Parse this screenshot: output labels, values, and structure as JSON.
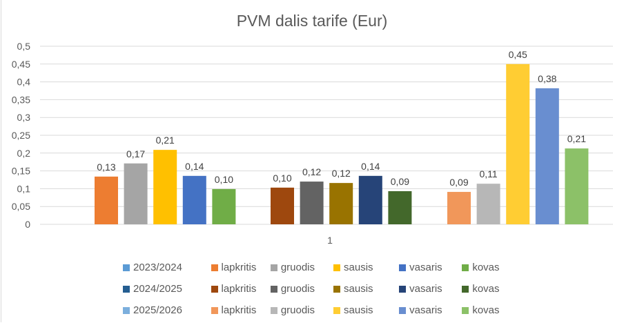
{
  "chart_data": {
    "type": "bar",
    "title": "PVM dalis tarife (Eur)",
    "xlabel": "",
    "ylabel": "",
    "categories": [
      "1"
    ],
    "ylim": [
      0,
      0.5
    ],
    "yticks": [
      "0",
      "0,05",
      "0,1",
      "0,15",
      "0,2",
      "0,25",
      "0,3",
      "0,35",
      "0,4",
      "0,45",
      "0,5"
    ],
    "ytick_values": [
      0,
      0.05,
      0.1,
      0.15,
      0.2,
      0.25,
      0.3,
      0.35,
      0.4,
      0.45,
      0.5
    ],
    "grid": true,
    "legend_position": "bottom",
    "groups": [
      {
        "name": "2023/2024",
        "marker_color": "#5B9BD5",
        "series": [
          {
            "name": "lapkritis",
            "value": 0.134,
            "label": "0,13",
            "color": "#ED7D31"
          },
          {
            "name": "gruodis",
            "value": 0.171,
            "label": "0,17",
            "color": "#A5A5A5"
          },
          {
            "name": "sausis",
            "value": 0.209,
            "label": "0,21",
            "color": "#FFC000"
          },
          {
            "name": "vasaris",
            "value": 0.136,
            "label": "0,14",
            "color": "#4472C4"
          },
          {
            "name": "kovas",
            "value": 0.099,
            "label": "0,10",
            "color": "#70AD47"
          }
        ]
      },
      {
        "name": "2024/2025",
        "marker_color": "#255E91",
        "series": [
          {
            "name": "lapkritis",
            "value": 0.103,
            "label": "0,10",
            "color": "#9E480E"
          },
          {
            "name": "gruodis",
            "value": 0.12,
            "label": "0,12",
            "color": "#636363"
          },
          {
            "name": "sausis",
            "value": 0.116,
            "label": "0,12",
            "color": "#997300"
          },
          {
            "name": "vasaris",
            "value": 0.136,
            "label": "0,14",
            "color": "#264478"
          },
          {
            "name": "kovas",
            "value": 0.093,
            "label": "0,09",
            "color": "#43682B"
          }
        ]
      },
      {
        "name": "2025/2026",
        "marker_color": "#7CAFDD",
        "series": [
          {
            "name": "lapkritis",
            "value": 0.091,
            "label": "0,09",
            "color": "#F1975A"
          },
          {
            "name": "gruodis",
            "value": 0.114,
            "label": "0,11",
            "color": "#B7B7B7"
          },
          {
            "name": "sausis",
            "value": 0.45,
            "label": "0,45",
            "color": "#FFCD33"
          },
          {
            "name": "vasaris",
            "value": 0.382,
            "label": "0,38",
            "color": "#698ED0"
          },
          {
            "name": "kovas",
            "value": 0.213,
            "label": "0,21",
            "color": "#8CC168"
          }
        ]
      }
    ]
  }
}
